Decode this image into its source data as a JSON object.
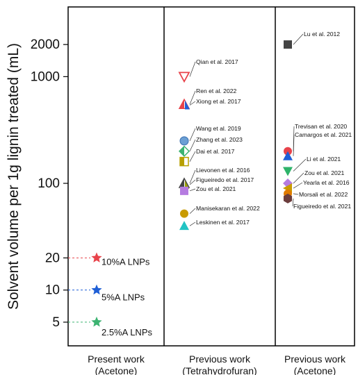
{
  "chart_data": {
    "type": "scatter",
    "ylabel": "Solvent volume per 1g lignin treated (mL)",
    "yscale": "log",
    "ylim": [
      3,
      4500
    ],
    "yticks": [
      5,
      10,
      20,
      100,
      1000,
      2000
    ],
    "grid": false,
    "legend": "none",
    "categories": [
      {
        "line1": "Present work",
        "line2": "(Acetone)"
      },
      {
        "line1": "Previous work",
        "line2": "(Tetrahydrofuran)"
      },
      {
        "line1": "Previous work",
        "line2": "(Acetone)"
      }
    ],
    "present_work": [
      {
        "label": "10%A LNPs",
        "y": 20,
        "color": "#e8434b"
      },
      {
        "label": "5%A LNPs",
        "y": 10,
        "color": "#1f5fd6"
      },
      {
        "label": "2.5%A LNPs",
        "y": 5,
        "color": "#3cb371"
      }
    ],
    "thf_points": [
      {
        "label": "Qian et al. 2017",
        "y": 1000,
        "marker": "triangle-down-open",
        "color": "#e8434b"
      },
      {
        "label": "Ren et al. 2022",
        "y": 550,
        "marker": "triangle-split",
        "color": "#e8434b"
      },
      {
        "label": "Xiong et al. 2017",
        "y": 540,
        "marker": "triangle-split-blue",
        "color": "#1f5fd6"
      },
      {
        "label": "Wang et al. 2019",
        "y": 250,
        "marker": "circle-blue",
        "color": "#6b9fd4"
      },
      {
        "label": "Zhang et al. 2023",
        "y": 200,
        "marker": "diamond-half",
        "color": "#3cb371"
      },
      {
        "label": "Dai et al. 2017",
        "y": 160,
        "marker": "square-half",
        "color": "#b8a000"
      },
      {
        "label": "Lievonen et al. 2016",
        "y": 100,
        "marker": "triangle-half",
        "color": "#444444"
      },
      {
        "label": "Figueiredo et al. 2017",
        "y": 97,
        "marker": "triangle-half-olive",
        "color": "#9aa000"
      },
      {
        "label": "Zou et al. 2021",
        "y": 85,
        "marker": "square",
        "color": "#b57be0"
      },
      {
        "label": "Manisekaran et al. 2022",
        "y": 52,
        "marker": "circle",
        "color": "#c99b00"
      },
      {
        "label": "Leskinen et al. 2017",
        "y": 40,
        "marker": "triangle-up",
        "color": "#22c4c4"
      }
    ],
    "acetone_points": [
      {
        "label": "Lu et al. 2012",
        "y": 2000,
        "marker": "square",
        "color": "#444444"
      },
      {
        "label": "Trevisan et al. 2020",
        "y": 200,
        "marker": "circle",
        "color": "#e8434b"
      },
      {
        "label": "Camargos et al. 2021",
        "y": 180,
        "marker": "triangle-up",
        "color": "#1f5fd6"
      },
      {
        "label": "Li et al. 2021",
        "y": 130,
        "marker": "triangle-down",
        "color": "#2eb36a"
      },
      {
        "label": "Zou et al. 2021",
        "y": 100,
        "marker": "diamond",
        "color": "#b57be0"
      },
      {
        "label": "Yearla et al. 2016",
        "y": 90,
        "marker": "triangle-left",
        "color": "#c99b00"
      },
      {
        "label": "Morsali et al. 2022",
        "y": 80,
        "marker": "circle",
        "color": "#e07b00"
      },
      {
        "label": "Figueiredo et al. 2021",
        "y": 72,
        "marker": "hexagon",
        "color": "#6b3d3d"
      }
    ]
  }
}
